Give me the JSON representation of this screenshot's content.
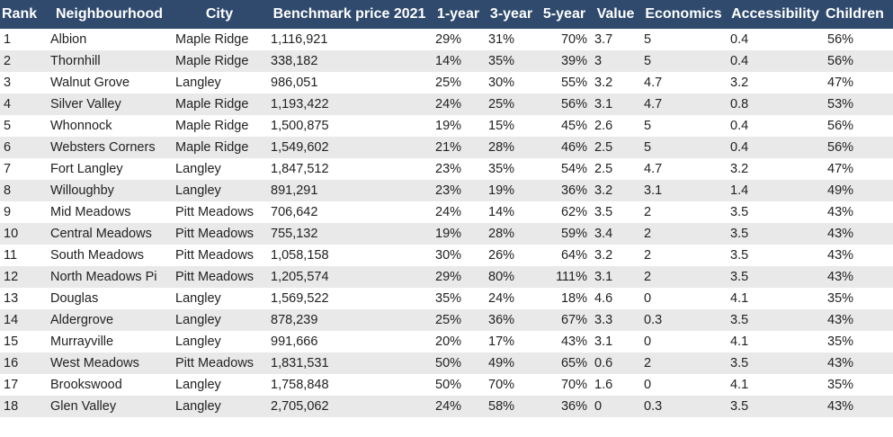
{
  "columns": [
    "Rank",
    "Neighbourhood",
    "City",
    "Benchmark price 2021",
    "1-year",
    "3-year",
    "5-year",
    "Value",
    "Economics",
    "Accessibility",
    "Children"
  ],
  "rows": [
    [
      "1",
      "Albion",
      "Maple Ridge",
      "1,116,921",
      "29%",
      "31%",
      "70%",
      "3.7",
      "5",
      "0.4",
      "56%"
    ],
    [
      "2",
      "Thornhill",
      "Maple Ridge",
      "338,182",
      "14%",
      "35%",
      "39%",
      "3",
      "5",
      "0.4",
      "56%"
    ],
    [
      "3",
      "Walnut Grove",
      "Langley",
      "986,051",
      "25%",
      "30%",
      "55%",
      "3.2",
      "4.7",
      "3.2",
      "47%"
    ],
    [
      "4",
      "Silver Valley",
      "Maple Ridge",
      "1,193,422",
      "24%",
      "25%",
      "56%",
      "3.1",
      "4.7",
      "0.8",
      "53%"
    ],
    [
      "5",
      "Whonnock",
      "Maple Ridge",
      "1,500,875",
      "19%",
      "15%",
      "45%",
      "2.6",
      "5",
      "0.4",
      "56%"
    ],
    [
      "6",
      "Websters Corners",
      "Maple Ridge",
      "1,549,602",
      "21%",
      "28%",
      "46%",
      "2.5",
      "5",
      "0.4",
      "56%"
    ],
    [
      "7",
      "Fort Langley",
      "Langley",
      "1,847,512",
      "23%",
      "35%",
      "54%",
      "2.5",
      "4.7",
      "3.2",
      "47%"
    ],
    [
      "8",
      "Willoughby",
      "Langley",
      "891,291",
      "23%",
      "19%",
      "36%",
      "3.2",
      "3.1",
      "1.4",
      "49%"
    ],
    [
      "9",
      "Mid Meadows",
      "Pitt Meadows",
      "706,642",
      "24%",
      "14%",
      "62%",
      "3.5",
      "2",
      "3.5",
      "43%"
    ],
    [
      "10",
      "Central Meadows",
      "Pitt Meadows",
      "755,132",
      "19%",
      "28%",
      "59%",
      "3.4",
      "2",
      "3.5",
      "43%"
    ],
    [
      "11",
      "South Meadows",
      "Pitt Meadows",
      "1,058,158",
      "30%",
      "26%",
      "64%",
      "3.2",
      "2",
      "3.5",
      "43%"
    ],
    [
      "12",
      "North Meadows Pi",
      "Pitt Meadows",
      "1,205,574",
      "29%",
      "80%",
      "111%",
      "3.1",
      "2",
      "3.5",
      "43%"
    ],
    [
      "13",
      "Douglas",
      "Langley",
      "1,569,522",
      "35%",
      "24%",
      "18%",
      "4.6",
      "0",
      "4.1",
      "35%"
    ],
    [
      "14",
      "Aldergrove",
      "Langley",
      "878,239",
      "25%",
      "36%",
      "67%",
      "3.3",
      "0.3",
      "3.5",
      "43%"
    ],
    [
      "15",
      "Murrayville",
      "Langley",
      "991,666",
      "20%",
      "17%",
      "43%",
      "3.1",
      "0",
      "4.1",
      "35%"
    ],
    [
      "16",
      "West Meadows",
      "Pitt Meadows",
      "1,831,531",
      "50%",
      "49%",
      "65%",
      "0.6",
      "2",
      "3.5",
      "43%"
    ],
    [
      "17",
      "Brookswood",
      "Langley",
      "1,758,848",
      "50%",
      "70%",
      "70%",
      "1.6",
      "0",
      "4.1",
      "35%"
    ],
    [
      "18",
      "Glen Valley",
      "Langley",
      "2,705,062",
      "24%",
      "58%",
      "36%",
      "0",
      "0.3",
      "3.5",
      "43%"
    ]
  ]
}
